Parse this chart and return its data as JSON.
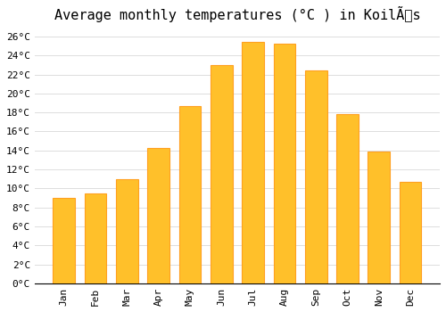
{
  "title": "Average monthly temperatures (°C ) in KoilÃs",
  "months": [
    "Jan",
    "Feb",
    "Mar",
    "Apr",
    "May",
    "Jun",
    "Jul",
    "Aug",
    "Sep",
    "Oct",
    "Nov",
    "Dec"
  ],
  "values": [
    9.0,
    9.5,
    11.0,
    14.3,
    18.7,
    23.0,
    25.4,
    25.2,
    22.4,
    17.8,
    13.9,
    10.7
  ],
  "bar_color": "#FFC02A",
  "bar_edge_color": "#FFA020",
  "ylim": [
    0,
    27
  ],
  "yticks": [
    0,
    2,
    4,
    6,
    8,
    10,
    12,
    14,
    16,
    18,
    20,
    22,
    24,
    26
  ],
  "background_color": "#FFFFFF",
  "grid_color": "#DDDDDD",
  "title_fontsize": 11,
  "tick_fontsize": 8,
  "font_family": "monospace"
}
